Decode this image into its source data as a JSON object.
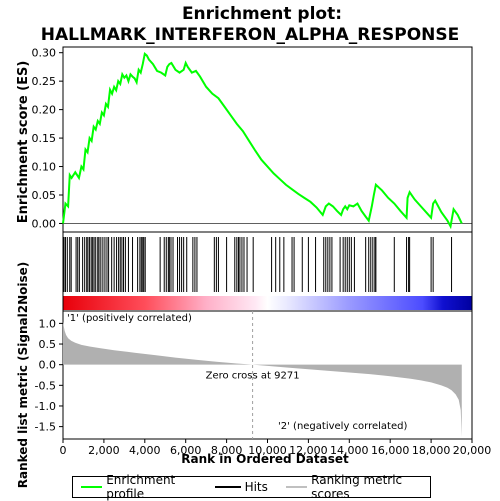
{
  "chart_data": {
    "type": "line",
    "title": "Enrichment plot:",
    "subtitle": "HALLMARK_INTERFERON_ALPHA_RESPONSE",
    "top_panel": {
      "ylabel": "Enrichment score (ES)",
      "ylim": [
        -0.015,
        0.31
      ],
      "yticks": [
        "0.00",
        "0.05",
        "0.10",
        "0.15",
        "0.20",
        "0.25",
        "0.30"
      ],
      "ytick_values": [
        0.0,
        0.05,
        0.1,
        0.15,
        0.2,
        0.25,
        0.3
      ],
      "series": [
        {
          "name": "Enrichment profile",
          "color": "#00ff00",
          "x": [
            0,
            120,
            250,
            330,
            420,
            600,
            780,
            900,
            1000,
            1100,
            1200,
            1300,
            1400,
            1500,
            1600,
            1700,
            1800,
            1900,
            2000,
            2100,
            2200,
            2300,
            2400,
            2500,
            2600,
            2700,
            2800,
            2900,
            3000,
            3100,
            3200,
            3300,
            3400,
            3500,
            3600,
            3700,
            3800,
            3900,
            4000,
            4100,
            4200,
            4400,
            4600,
            4800,
            5000,
            5100,
            5200,
            5300,
            5500,
            5700,
            5900,
            6000,
            6100,
            6300,
            6500,
            6700,
            7000,
            7300,
            7600,
            7900,
            8200,
            8500,
            8800,
            9100,
            9400,
            9700,
            10000,
            10300,
            10600,
            10900,
            11200,
            11500,
            11800,
            12100,
            12400,
            12700,
            12850,
            13000,
            13200,
            13400,
            13600,
            13700,
            13800,
            13900,
            14000,
            14200,
            14400,
            14600,
            14800,
            14950,
            15100,
            15200,
            15300,
            15600,
            15900,
            16200,
            16500,
            16800,
            16850,
            16950,
            17200,
            17500,
            17800,
            18000,
            18100,
            18200,
            18500,
            18800,
            18950,
            19100,
            19300,
            19500
          ],
          "y": [
            0.0,
            0.035,
            0.03,
            0.085,
            0.08,
            0.09,
            0.08,
            0.1,
            0.095,
            0.13,
            0.125,
            0.15,
            0.145,
            0.17,
            0.165,
            0.18,
            0.175,
            0.195,
            0.19,
            0.21,
            0.205,
            0.235,
            0.228,
            0.24,
            0.234,
            0.25,
            0.245,
            0.262,
            0.256,
            0.26,
            0.25,
            0.262,
            0.258,
            0.255,
            0.248,
            0.27,
            0.265,
            0.28,
            0.298,
            0.295,
            0.288,
            0.28,
            0.268,
            0.265,
            0.26,
            0.275,
            0.28,
            0.282,
            0.27,
            0.265,
            0.27,
            0.282,
            0.275,
            0.265,
            0.268,
            0.258,
            0.24,
            0.228,
            0.22,
            0.205,
            0.19,
            0.175,
            0.162,
            0.145,
            0.128,
            0.112,
            0.1,
            0.088,
            0.078,
            0.068,
            0.06,
            0.052,
            0.045,
            0.038,
            0.028,
            0.015,
            0.03,
            0.035,
            0.03,
            0.022,
            0.015,
            0.025,
            0.03,
            0.025,
            0.032,
            0.03,
            0.035,
            0.022,
            0.012,
            0.005,
            0.03,
            0.05,
            0.068,
            0.058,
            0.045,
            0.035,
            0.022,
            0.01,
            0.045,
            0.055,
            0.042,
            0.03,
            0.018,
            0.01,
            0.035,
            0.04,
            0.02,
            0.005,
            -0.005,
            0.025,
            0.015,
            0.0
          ]
        }
      ]
    },
    "hits": [
      50,
      120,
      210,
      330,
      400,
      640,
      720,
      800,
      960,
      1060,
      1160,
      1220,
      1300,
      1380,
      1450,
      1520,
      1600,
      1700,
      1760,
      1850,
      1950,
      2050,
      2150,
      2230,
      2380,
      2500,
      2620,
      2720,
      2800,
      2880,
      2960,
      3050,
      3200,
      3400,
      3650,
      3760,
      3830,
      3900,
      3950,
      4020,
      4750,
      4950,
      5050,
      5150,
      5200,
      5280,
      5380,
      5600,
      5700,
      5800,
      5900,
      6050,
      6350,
      6450,
      6550,
      7400,
      7500,
      7600,
      8000,
      8400,
      8500,
      8580,
      8650,
      8750,
      8850,
      9000,
      9300,
      10200,
      10400,
      10600,
      10800,
      11200,
      11300,
      11700,
      12000,
      12350,
      12750,
      12850,
      12950,
      13050,
      13150,
      13550,
      13700,
      13800,
      13900,
      14000,
      14100,
      14250,
      14800,
      14950,
      15050,
      15150,
      15250,
      15300,
      16200,
      16800,
      16900,
      16950,
      18000,
      18100,
      19000
    ],
    "bottom_panel": {
      "ylabel": "Ranked list metric (Signal2Noise)",
      "xlabel": "Rank in Ordered Dataset",
      "ylim": [
        -1.8,
        1.3
      ],
      "yticks": [
        "1.0",
        "0.5",
        "0.0",
        "-0.5",
        "-1.0",
        "-1.5"
      ],
      "ytick_values": [
        1.0,
        0.5,
        0.0,
        -0.5,
        -1.0,
        -1.5
      ],
      "metric_x": [
        0,
        30,
        80,
        150,
        250,
        400,
        600,
        900,
        1300,
        1800,
        2500,
        3500,
        4500,
        5500,
        6500,
        7500,
        8500,
        9271,
        10000,
        11000,
        12000,
        13000,
        14000,
        15000,
        16000,
        17000,
        17500,
        18000,
        18500,
        18800,
        19000,
        19200,
        19350,
        19450,
        19500
      ],
      "metric_y": [
        1.05,
        0.95,
        0.82,
        0.72,
        0.64,
        0.58,
        0.53,
        0.48,
        0.44,
        0.4,
        0.35,
        0.29,
        0.23,
        0.17,
        0.12,
        0.07,
        0.03,
        0.0,
        -0.03,
        -0.07,
        -0.11,
        -0.15,
        -0.19,
        -0.23,
        -0.28,
        -0.34,
        -0.38,
        -0.43,
        -0.5,
        -0.56,
        -0.62,
        -0.72,
        -0.85,
        -1.1,
        -1.75
      ],
      "zero_cross_label": "Zero cross at 9271",
      "zero_cross": 9271,
      "pos_label": "'1' (positively correlated)",
      "neg_label": "'2' (negatively correlated)"
    },
    "xlim": [
      0,
      20000
    ],
    "xticks": [
      "0",
      "2,000",
      "4,000",
      "6,000",
      "8,000",
      "10,000",
      "12,000",
      "14,000",
      "16,000",
      "18,000",
      "20,000"
    ],
    "xtick_values": [
      0,
      2000,
      4000,
      6000,
      8000,
      10000,
      12000,
      14000,
      16000,
      18000,
      20000
    ],
    "n_genes": 19500,
    "legend": {
      "items": [
        "Enrichment profile",
        "Hits",
        "Ranking metric scores"
      ],
      "placement": "bottom"
    },
    "colors": {
      "profile": "#00ff00",
      "hits": "#000000",
      "metric_fill": "#b0b0b0",
      "pos_text": "#cc0000",
      "neg_text": "#0000cc",
      "zero_line": "#a0a0a0"
    }
  }
}
